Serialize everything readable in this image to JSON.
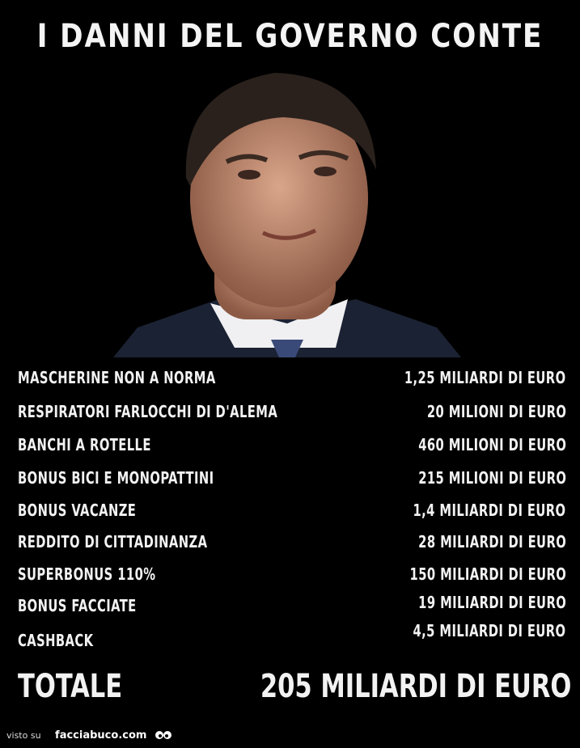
{
  "title": "I DANNI DEL GOVERNO CONTE",
  "items": [
    {
      "label": "MASCHERINE NON A NORMA",
      "value": "1,25 MILIARDI DI EURO"
    },
    {
      "label": "RESPIRATORI FARLOCCHI DI D'ALEMA",
      "value": "20 MILIONI DI EURO"
    },
    {
      "label": "BANCHI A ROTELLE",
      "value": "460 MILIONI DI EURO"
    },
    {
      "label": "BONUS BICI E MONOPATTINI",
      "value": "215 MILIONI DI EURO"
    },
    {
      "label": "BONUS VACANZE",
      "value": "1,4 MILIARDI DI EURO"
    },
    {
      "label": "REDDITO DI CITTADINANZA",
      "value": "28 MILIARDI DI EURO"
    },
    {
      "label": "SUPERBONUS 110%",
      "value": "150 MILIARDI DI EURO"
    },
    {
      "label": "BONUS FACCIATE",
      "value": "19 MILIARDI DI EURO"
    },
    {
      "label": "CASHBACK",
      "value": "4,5 MILIARDI DI EURO"
    }
  ],
  "total": {
    "label": "TOTALE",
    "value": "205 MILIARDI DI EURO"
  },
  "footer": {
    "prefix": "visto su",
    "site": "facciabuco.com"
  },
  "colors": {
    "background": "#000000",
    "text": "#f2f2f2"
  }
}
